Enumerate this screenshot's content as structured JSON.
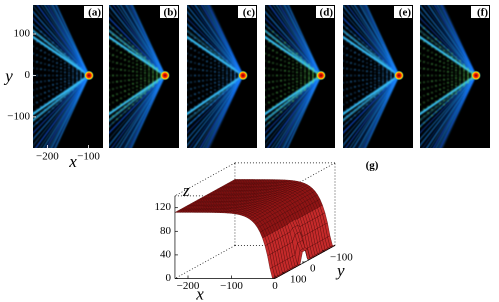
{
  "panel_labels": [
    "(a)",
    "(b)",
    "(c)",
    "(d)",
    "(e)",
    "(f)"
  ],
  "surface_label": "(g)",
  "heatmap_axes": {
    "xlabel": "x",
    "ylabel": "y",
    "xlim": [
      -235,
      -65
    ],
    "ylim": [
      -175,
      170
    ],
    "xticks": [
      {
        "value": -200,
        "label": "−200"
      },
      {
        "value": -100,
        "label": "−100"
      }
    ],
    "yticks": [
      100,
      0,
      {
        "value": -100,
        "label": "−100"
      }
    ]
  },
  "surface_axes": {
    "xlabel": "x",
    "ylabel": "y",
    "zlabel": "z",
    "xlim": [
      -230,
      0
    ],
    "ylim": [
      -150,
      150
    ],
    "zlim": [
      0,
      140
    ],
    "xticks": [
      {
        "value": -200,
        "label": "−200"
      },
      {
        "value": -100,
        "label": "−100"
      },
      0
    ],
    "yticks": [
      {
        "value": -100,
        "label": "−100"
      },
      0,
      100
    ],
    "zticks": [
      0,
      40,
      80,
      120
    ]
  }
}
